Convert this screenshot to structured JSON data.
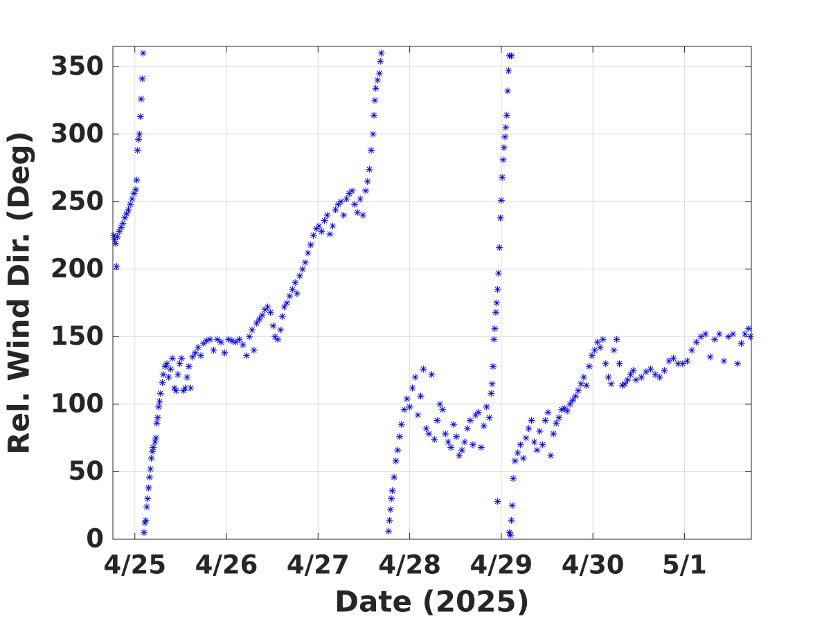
{
  "chart_data": {
    "type": "scatter",
    "marker": "asterisk",
    "color": "#0000ff",
    "xlabel": "Date (2025)",
    "ylabel": "Rel. Wind Dir. (Deg)",
    "grid": true,
    "xlim": [
      24.76,
      31.73
    ],
    "ylim": [
      0,
      365
    ],
    "xticks": [
      {
        "value": 25,
        "label": "4/25"
      },
      {
        "value": 26,
        "label": "4/26"
      },
      {
        "value": 27,
        "label": "4/27"
      },
      {
        "value": 28,
        "label": "4/28"
      },
      {
        "value": 29,
        "label": "4/29"
      },
      {
        "value": 30,
        "label": "4/30"
      },
      {
        "value": 31,
        "label": "5/1"
      }
    ],
    "yticks": [
      0,
      50,
      100,
      150,
      200,
      250,
      300,
      350
    ],
    "x": [
      24.77,
      24.78,
      24.79,
      24.8,
      24.81,
      24.83,
      24.85,
      24.87,
      24.89,
      24.91,
      24.93,
      24.95,
      24.97,
      24.99,
      25.01,
      25.02,
      25.03,
      25.04,
      25.05,
      25.06,
      25.07,
      25.08,
      25.09,
      25.1,
      25.11,
      25.12,
      25.13,
      25.14,
      25.15,
      25.16,
      25.17,
      25.18,
      25.19,
      25.2,
      25.22,
      25.23,
      25.24,
      25.25,
      25.26,
      25.27,
      25.28,
      25.3,
      25.31,
      25.33,
      25.35,
      25.37,
      25.39,
      25.41,
      25.43,
      25.45,
      25.47,
      25.49,
      25.51,
      25.53,
      25.55,
      25.57,
      25.59,
      25.61,
      25.63,
      25.66,
      25.69,
      25.72,
      25.75,
      25.78,
      25.82,
      25.86,
      25.9,
      25.94,
      25.98,
      26.02,
      26.06,
      26.1,
      26.14,
      26.18,
      26.22,
      26.25,
      26.28,
      26.3,
      26.33,
      26.36,
      26.39,
      26.42,
      26.45,
      26.48,
      26.51,
      26.53,
      26.56,
      26.59,
      26.61,
      26.63,
      26.66,
      26.69,
      26.72,
      26.75,
      26.77,
      26.8,
      26.83,
      26.86,
      26.89,
      26.92,
      26.95,
      26.98,
      27.01,
      27.04,
      27.07,
      27.1,
      27.13,
      27.16,
      27.19,
      27.22,
      27.25,
      27.28,
      27.31,
      27.34,
      27.37,
      27.4,
      27.43,
      27.46,
      27.49,
      27.52,
      27.54,
      27.56,
      27.58,
      27.6,
      27.61,
      27.62,
      27.63,
      27.65,
      27.67,
      27.68,
      27.69,
      27.77,
      27.78,
      27.79,
      27.8,
      27.81,
      27.83,
      27.85,
      27.87,
      27.89,
      27.91,
      27.94,
      27.97,
      28,
      28.03,
      28.06,
      28.09,
      28.12,
      28.15,
      28.18,
      28.21,
      28.24,
      28.27,
      28.3,
      28.33,
      28.36,
      28.39,
      28.42,
      28.45,
      28.48,
      28.51,
      28.54,
      28.57,
      28.6,
      28.63,
      28.66,
      28.69,
      28.72,
      28.75,
      28.78,
      28.81,
      28.84,
      28.87,
      28.89,
      28.9,
      28.91,
      28.92,
      28.93,
      28.94,
      28.95,
      28.96,
      28.97,
      28.98,
      28.99,
      29,
      29.01,
      29.02,
      29.03,
      29.04,
      29.05,
      29.06,
      29.07,
      29.08,
      29.09,
      29.11,
      28.96,
      29.09,
      29.1,
      29.11,
      29.12,
      29.13,
      29.15,
      29.18,
      29.21,
      29.24,
      29.27,
      29.3,
      29.33,
      29.36,
      29.39,
      29.42,
      29.45,
      29.48,
      29.51,
      29.54,
      29.57,
      29.6,
      29.63,
      29.66,
      29.69,
      29.72,
      29.75,
      29.78,
      29.81,
      29.84,
      29.87,
      29.9,
      29.93,
      29.96,
      29.99,
      30.02,
      30.05,
      30.08,
      30.11,
      30.14,
      30.17,
      30.2,
      30.23,
      30.26,
      30.29,
      30.32,
      30.35,
      30.38,
      30.41,
      30.44,
      30.47,
      30.53,
      30.58,
      30.63,
      30.68,
      30.73,
      30.78,
      30.83,
      30.88,
      30.93,
      30.98,
      31.03,
      31.08,
      31.13,
      31.18,
      31.23,
      31.28,
      31.33,
      31.38,
      31.43,
      31.48,
      31.53,
      31.58,
      31.62,
      31.66,
      31.7,
      31.72
    ],
    "values": [
      225,
      222,
      219,
      202,
      224,
      228,
      231,
      234,
      238,
      241,
      244,
      248,
      252,
      256,
      259,
      266,
      288,
      296,
      300,
      313,
      326,
      341,
      360,
      5,
      12,
      14,
      24,
      30,
      38,
      46,
      52,
      60,
      65,
      68,
      72,
      75,
      86,
      90,
      98,
      102,
      108,
      116,
      122,
      128,
      130,
      120,
      126,
      134,
      112,
      110,
      122,
      130,
      134,
      110,
      112,
      120,
      128,
      112,
      135,
      138,
      142,
      136,
      145,
      147,
      148,
      140,
      148,
      146,
      138,
      148,
      147,
      146,
      148,
      144,
      136,
      150,
      155,
      140,
      160,
      163,
      166,
      170,
      172,
      168,
      158,
      150,
      148,
      155,
      165,
      172,
      175,
      180,
      185,
      190,
      182,
      195,
      200,
      205,
      212,
      218,
      225,
      230,
      232,
      228,
      236,
      240,
      226,
      232,
      244,
      248,
      250,
      240,
      252,
      256,
      258,
      248,
      242,
      252,
      240,
      258,
      265,
      274,
      288,
      300,
      314,
      325,
      334,
      340,
      345,
      354,
      360,
      6,
      14,
      22,
      30,
      36,
      46,
      58,
      66,
      76,
      85,
      96,
      104,
      98,
      112,
      120,
      92,
      106,
      126,
      82,
      78,
      122,
      74,
      88,
      100,
      96,
      78,
      72,
      68,
      85,
      76,
      62,
      66,
      72,
      82,
      88,
      70,
      92,
      94,
      68,
      84,
      98,
      90,
      108,
      115,
      128,
      148,
      156,
      168,
      175,
      185,
      197,
      216,
      238,
      251,
      268,
      281,
      290,
      298,
      305,
      314,
      332,
      347,
      358,
      358,
      28,
      5,
      3,
      14,
      25,
      45,
      58,
      64,
      70,
      60,
      75,
      82,
      88,
      72,
      66,
      80,
      70,
      88,
      94,
      62,
      78,
      86,
      90,
      96,
      97,
      95,
      100,
      103,
      106,
      110,
      115,
      120,
      114,
      128,
      136,
      140,
      146,
      142,
      148,
      130,
      120,
      115,
      140,
      148,
      130,
      114,
      115,
      118,
      122,
      125,
      118,
      120,
      124,
      126,
      122,
      120,
      125,
      132,
      134,
      130,
      130,
      132,
      140,
      146,
      150,
      152,
      135,
      148,
      152,
      132,
      150,
      152,
      130,
      145,
      152,
      156,
      150
    ]
  }
}
